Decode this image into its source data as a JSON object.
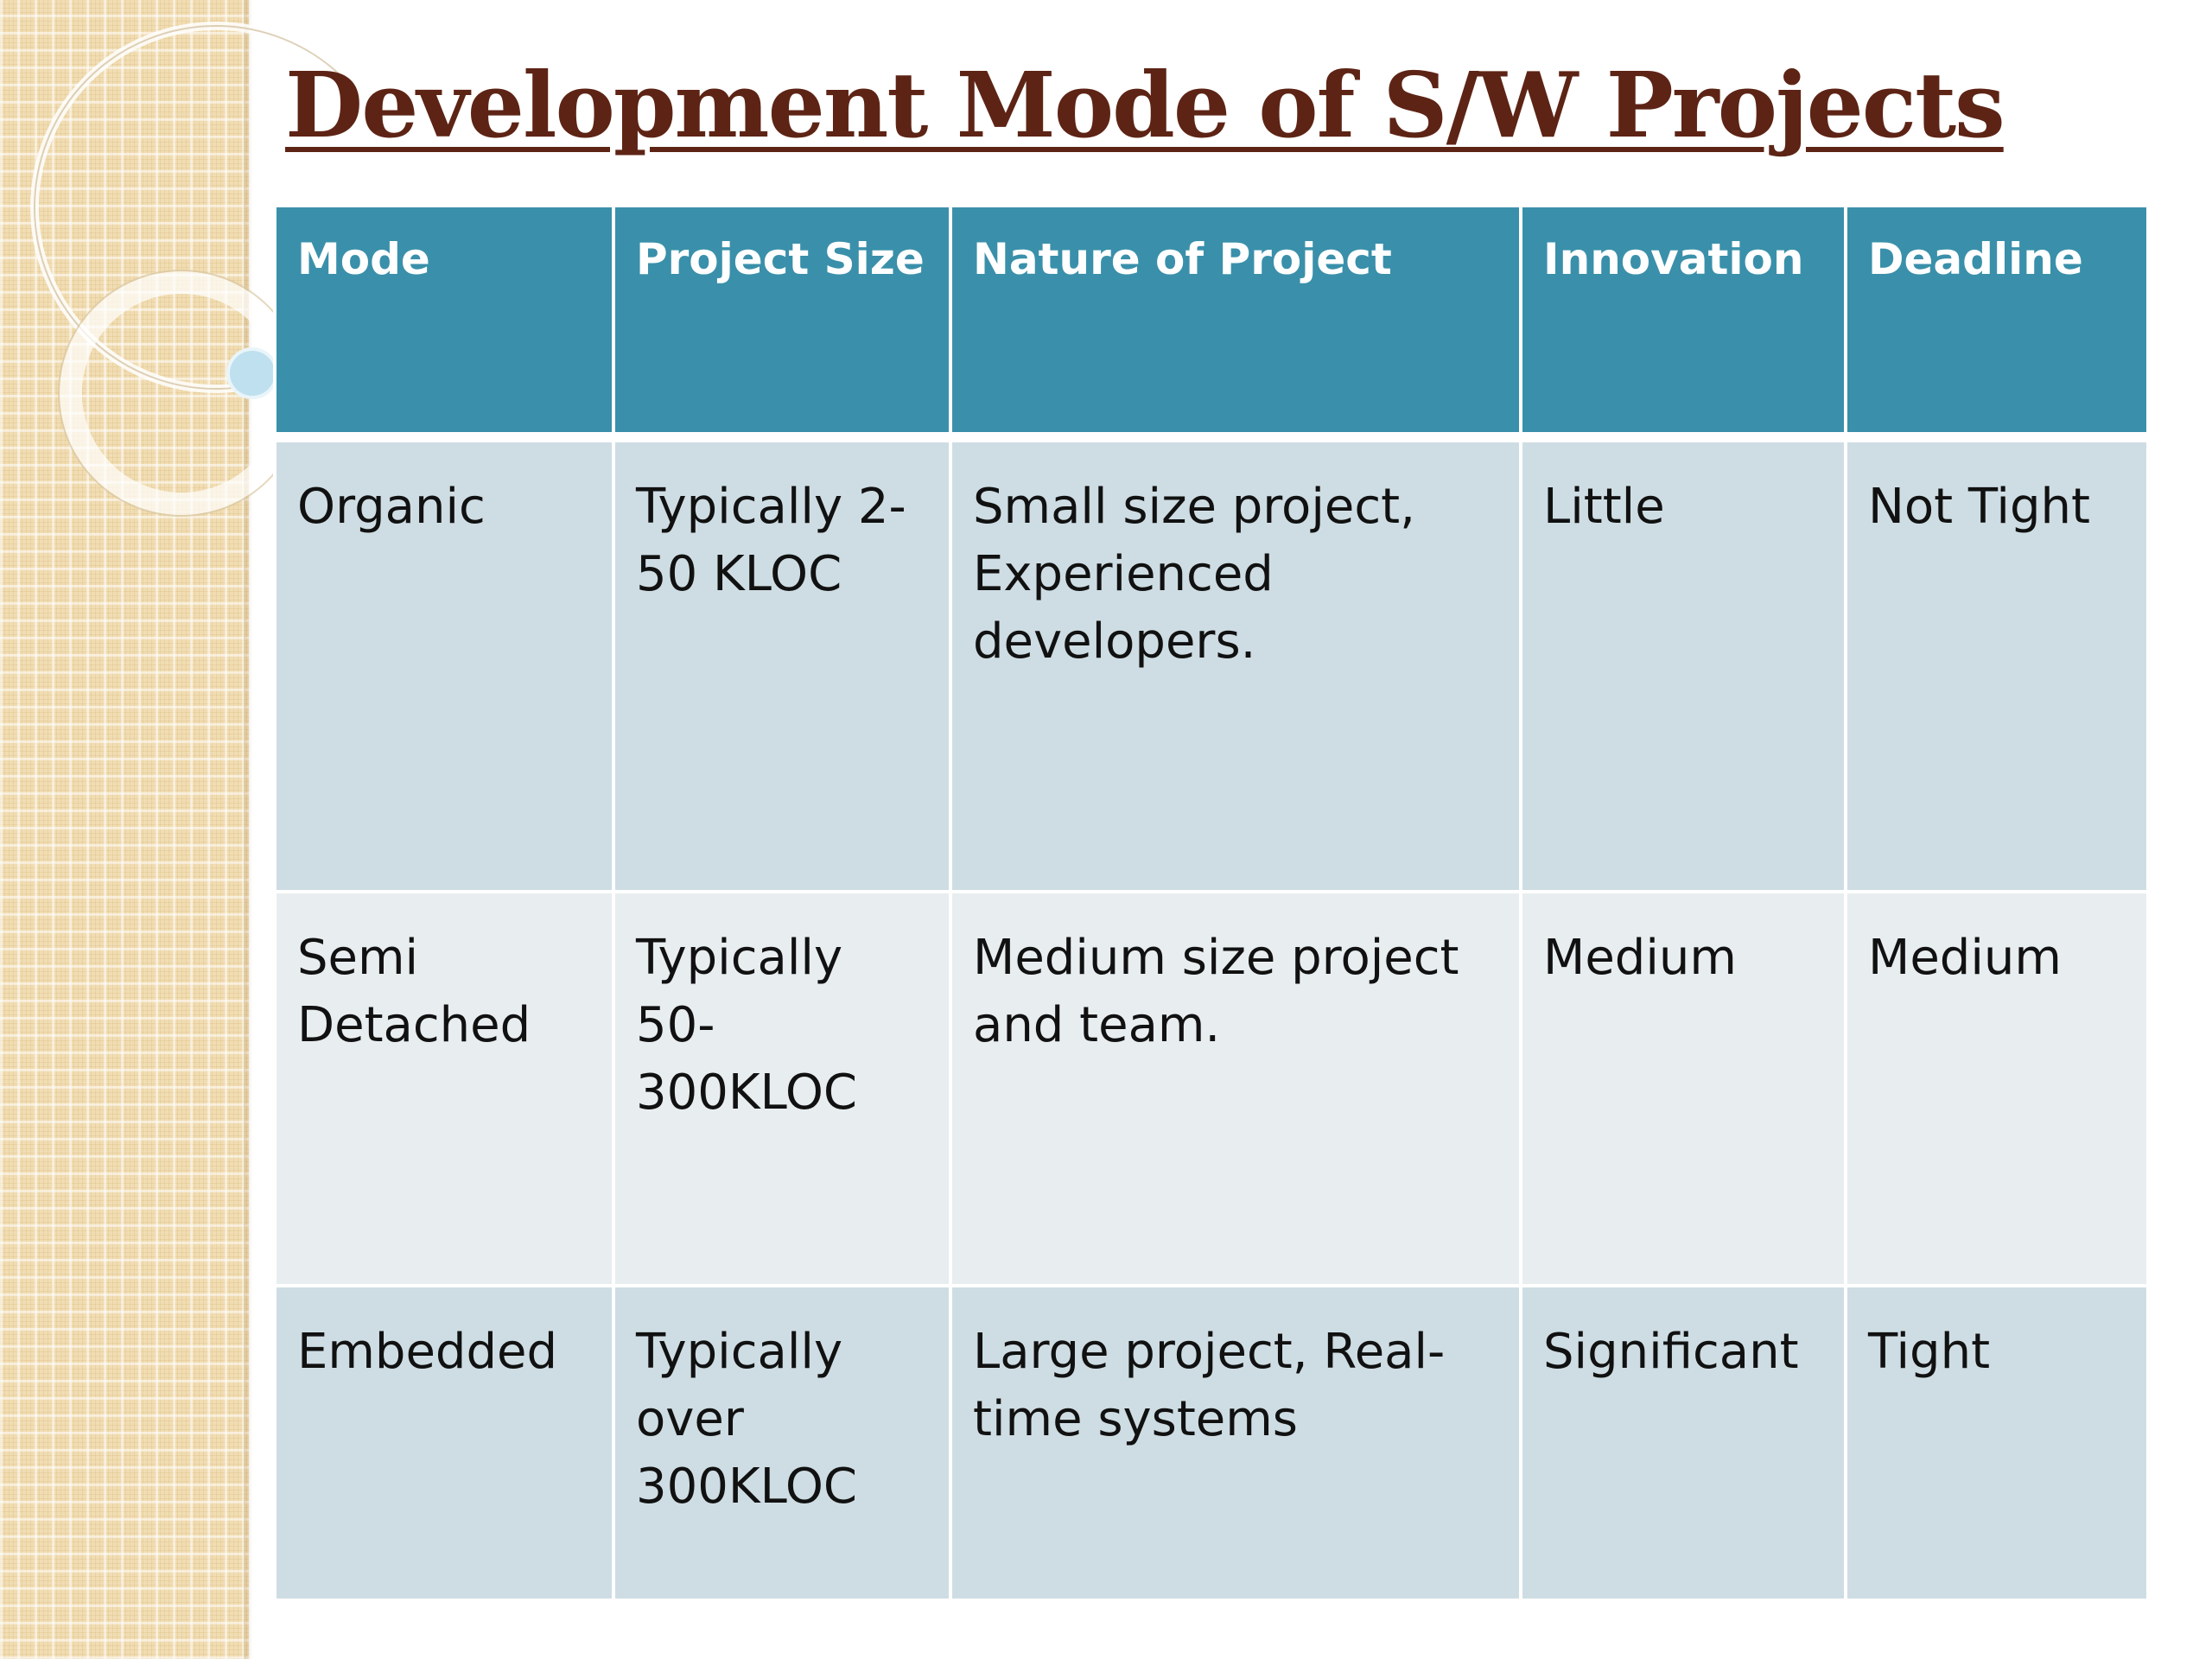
{
  "slide": {
    "title": "Development Mode of S/W Projects"
  },
  "table": {
    "headers": {
      "mode": "Mode",
      "size": "Project Size",
      "nature": "Nature of Project",
      "innovation": "Innovation",
      "deadline": "Deadline"
    },
    "rows": [
      {
        "mode": "Organic",
        "size": "Typically 2-50 KLOC",
        "nature": "Small size project, Experienced developers.",
        "innovation": "Little",
        "deadline": "Not Tight"
      },
      {
        "mode": "Semi Detached",
        "size": "Typically 50-300KLOC",
        "nature": "Medium size project and team.",
        "innovation": "Medium",
        "deadline": "Medium"
      },
      {
        "mode": "Embedded",
        "size": "Typically over 300KLOC",
        "nature": "Large project, Real-time systems",
        "innovation": "Significant",
        "deadline": "Tight"
      }
    ]
  },
  "colors": {
    "title": "#5d2415",
    "header_bg": "#3a90aa",
    "row_dark": "#cedde3",
    "row_light": "#e8edf0",
    "side_strip": "#f1ddb3"
  }
}
